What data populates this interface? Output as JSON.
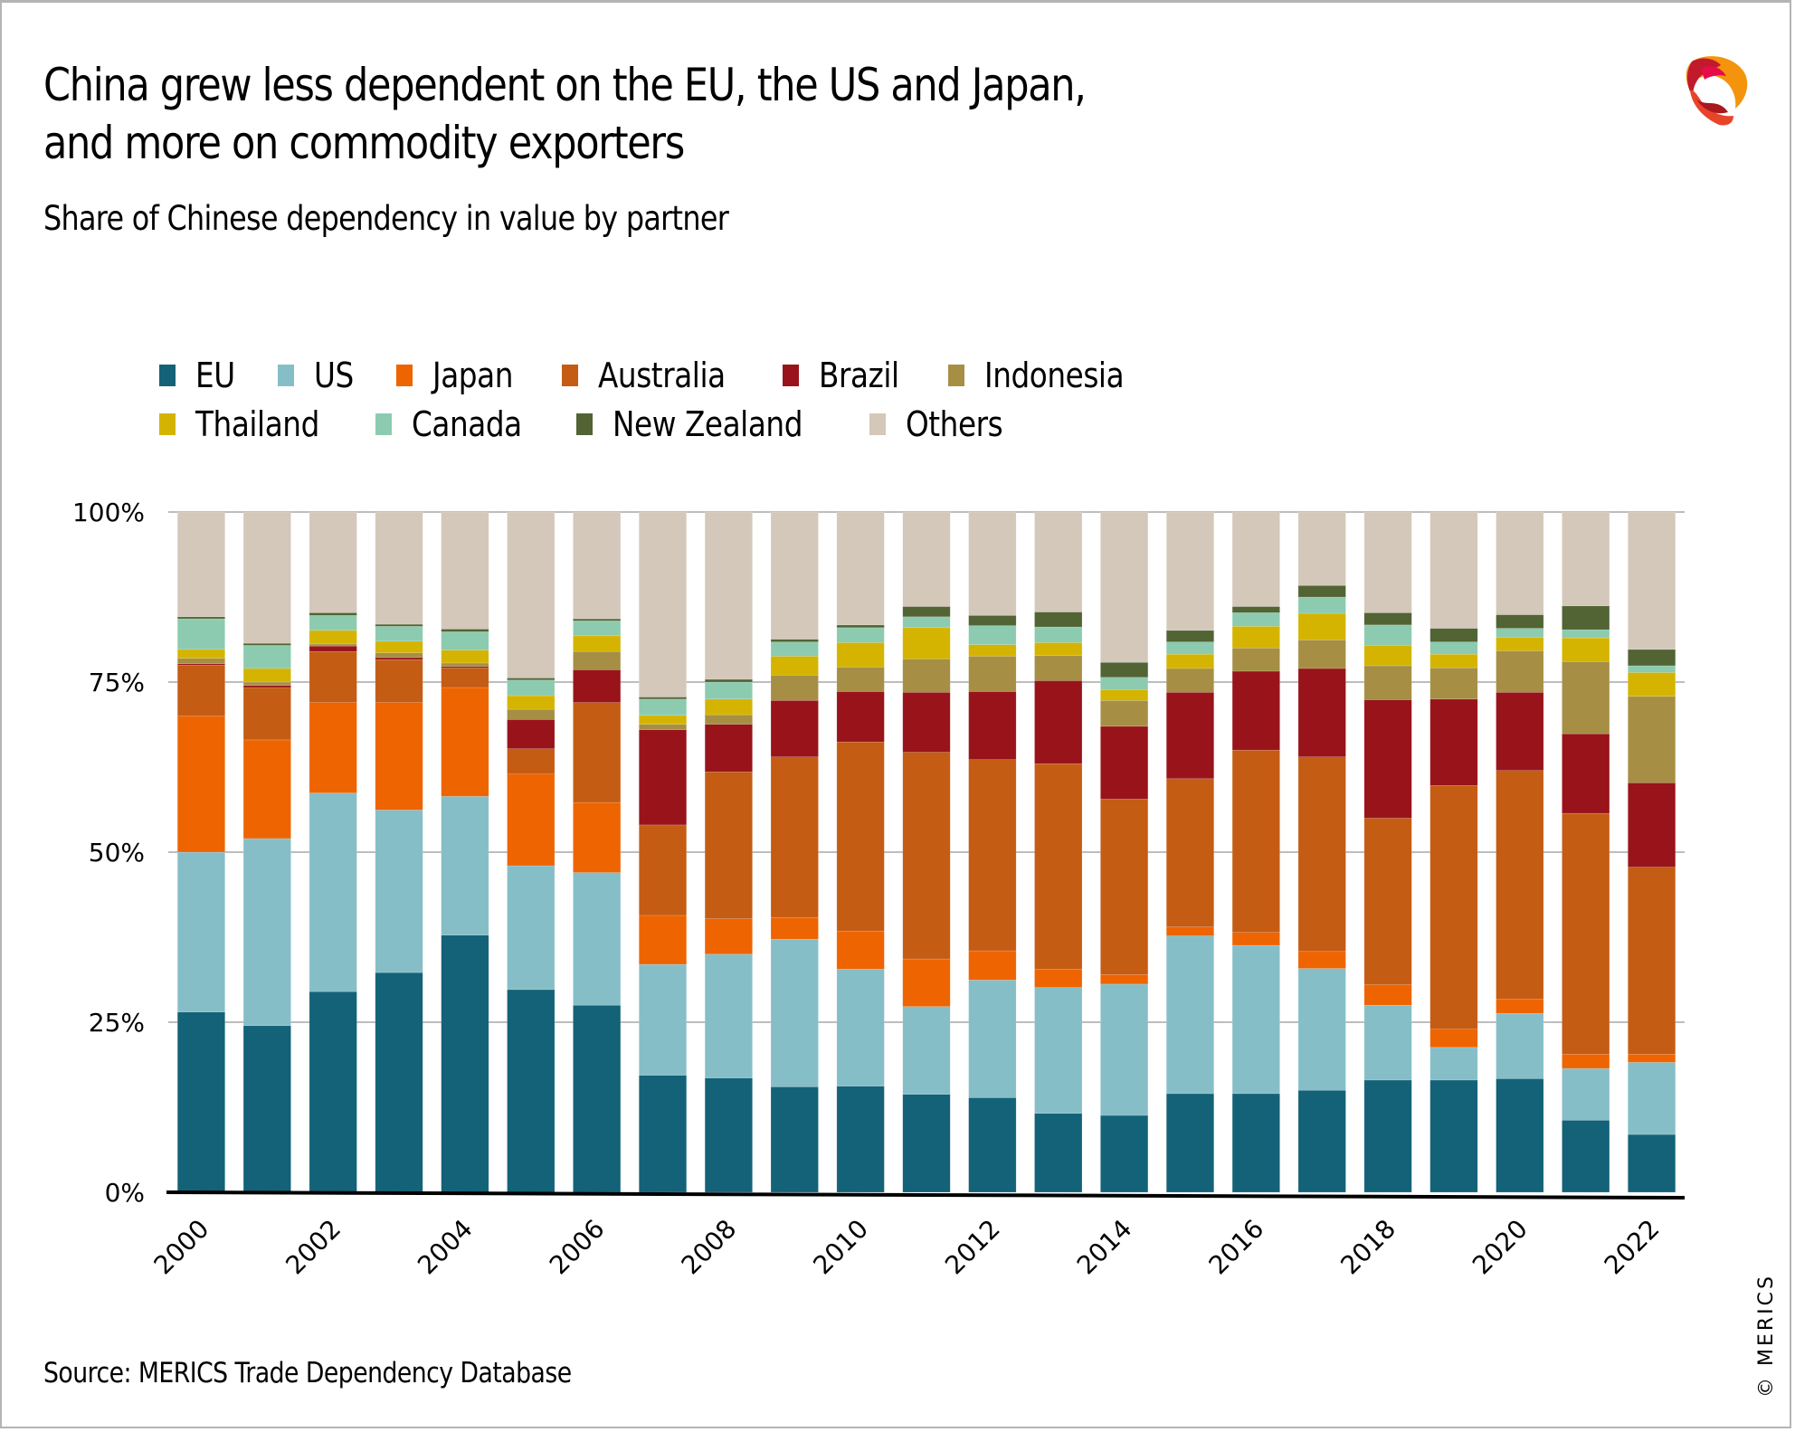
{
  "header": {
    "title_line1": "China grew less dependent on the EU, the US and Japan,",
    "title_line2": "and more on commodity exporters",
    "subtitle": "Share of Chinese dependency in value by partner"
  },
  "footer": {
    "source": "Source: MERICS Trade Dependency Database",
    "copyright": "© MERICS"
  },
  "logo": {
    "icon": "merics-ribbon-logo-icon"
  },
  "chart_data": {
    "type": "bar",
    "stacked": true,
    "normalized": true,
    "title": "China grew less dependent on the EU, the US and Japan, and more on commodity exporters",
    "subtitle": "Share of Chinese dependency in value by partner",
    "xlabel": "",
    "ylabel": "",
    "ylim": [
      0,
      100
    ],
    "yticks": [
      "0%",
      "25%",
      "50%",
      "75%",
      "100%"
    ],
    "grid": true,
    "legend_position": "top",
    "categories": [
      "2000",
      "2001",
      "2002",
      "2003",
      "2004",
      "2005",
      "2006",
      "2007",
      "2008",
      "2009",
      "2010",
      "2011",
      "2012",
      "2013",
      "2014",
      "2015",
      "2016",
      "2017",
      "2018",
      "2019",
      "2020",
      "2021",
      "2022"
    ],
    "xtick_labels": [
      "2000",
      "2002",
      "2004",
      "2006",
      "2008",
      "2010",
      "2012",
      "2014",
      "2016",
      "2018",
      "2020",
      "2022"
    ],
    "series": [
      {
        "name": "EU",
        "color": "#136278",
        "values": [
          26.5,
          24.5,
          29.5,
          32.3,
          37.8,
          29.8,
          27.5,
          17.2,
          16.8,
          15.5,
          15.6,
          14.4,
          13.9,
          11.6,
          11.3,
          14.5,
          14.5,
          15.0,
          16.5,
          16.5,
          16.7,
          10.6,
          8.5
        ]
      },
      {
        "name": "US",
        "color": "#86bec8",
        "values": [
          23.5,
          27.5,
          29.2,
          23.9,
          20.4,
          18.2,
          19.5,
          16.3,
          18.2,
          21.7,
          17.2,
          12.9,
          17.3,
          18.5,
          19.3,
          23.2,
          21.8,
          17.9,
          11.0,
          4.8,
          9.6,
          7.6,
          10.6
        ]
      },
      {
        "name": "Japan",
        "color": "#ee6400",
        "values": [
          20.0,
          14.5,
          13.3,
          15.8,
          16.0,
          13.5,
          10.3,
          7.2,
          5.2,
          3.2,
          5.6,
          7.0,
          4.3,
          2.7,
          1.4,
          1.3,
          1.9,
          2.5,
          3.0,
          2.7,
          2.1,
          2.1,
          1.2
        ]
      },
      {
        "name": "Australia",
        "color": "#c45c14",
        "values": [
          7.5,
          7.7,
          7.5,
          6.3,
          2.9,
          3.7,
          14.7,
          13.3,
          21.6,
          23.6,
          27.8,
          30.4,
          28.1,
          30.2,
          25.8,
          21.8,
          26.8,
          28.6,
          24.5,
          35.8,
          33.6,
          35.4,
          27.5
        ]
      },
      {
        "name": "Brazil",
        "color": "#98141a",
        "values": [
          0.2,
          0.3,
          0.8,
          0.3,
          0.2,
          4.3,
          4.8,
          14.0,
          7.0,
          8.3,
          7.4,
          8.8,
          10.0,
          12.2,
          10.7,
          12.7,
          11.6,
          13.0,
          17.4,
          12.7,
          11.5,
          11.7,
          12.4
        ]
      },
      {
        "name": "Indonesia",
        "color": "#a68f44",
        "values": [
          0.8,
          0.5,
          0.3,
          0.7,
          0.5,
          1.5,
          2.7,
          0.8,
          1.4,
          3.7,
          3.6,
          4.9,
          5.2,
          3.7,
          3.8,
          3.5,
          3.4,
          4.2,
          5.0,
          4.6,
          6.1,
          10.6,
          12.7
        ]
      },
      {
        "name": "Thailand",
        "color": "#d4b400",
        "values": [
          1.3,
          2.0,
          2.0,
          1.7,
          1.9,
          2.0,
          2.3,
          1.3,
          2.3,
          2.8,
          3.6,
          4.6,
          1.7,
          1.9,
          1.6,
          2.1,
          3.2,
          3.9,
          3.0,
          2.0,
          2.0,
          3.5,
          3.5
        ]
      },
      {
        "name": "Canada",
        "color": "#8ccbaf",
        "values": [
          4.5,
          3.4,
          2.2,
          2.2,
          2.7,
          2.3,
          2.2,
          2.4,
          2.5,
          2.1,
          2.2,
          1.6,
          2.8,
          2.3,
          1.8,
          1.8,
          2.0,
          2.4,
          3.0,
          1.8,
          1.3,
          1.2,
          1.0
        ]
      },
      {
        "name": "New Zealand",
        "color": "#526334",
        "values": [
          0.3,
          0.3,
          0.4,
          0.3,
          0.4,
          0.3,
          0.3,
          0.3,
          0.4,
          0.4,
          0.4,
          1.5,
          1.5,
          2.2,
          2.2,
          1.7,
          0.9,
          1.7,
          1.8,
          2.0,
          2.0,
          3.5,
          2.4
        ]
      },
      {
        "name": "Others",
        "color": "#d4c8ba",
        "values": [
          15.4,
          19.3,
          14.8,
          16.5,
          17.2,
          24.4,
          15.7,
          27.2,
          24.6,
          18.7,
          16.6,
          13.9,
          15.2,
          14.7,
          22.1,
          17.4,
          13.9,
          10.8,
          14.8,
          17.1,
          15.1,
          13.8,
          20.2
        ]
      }
    ]
  }
}
